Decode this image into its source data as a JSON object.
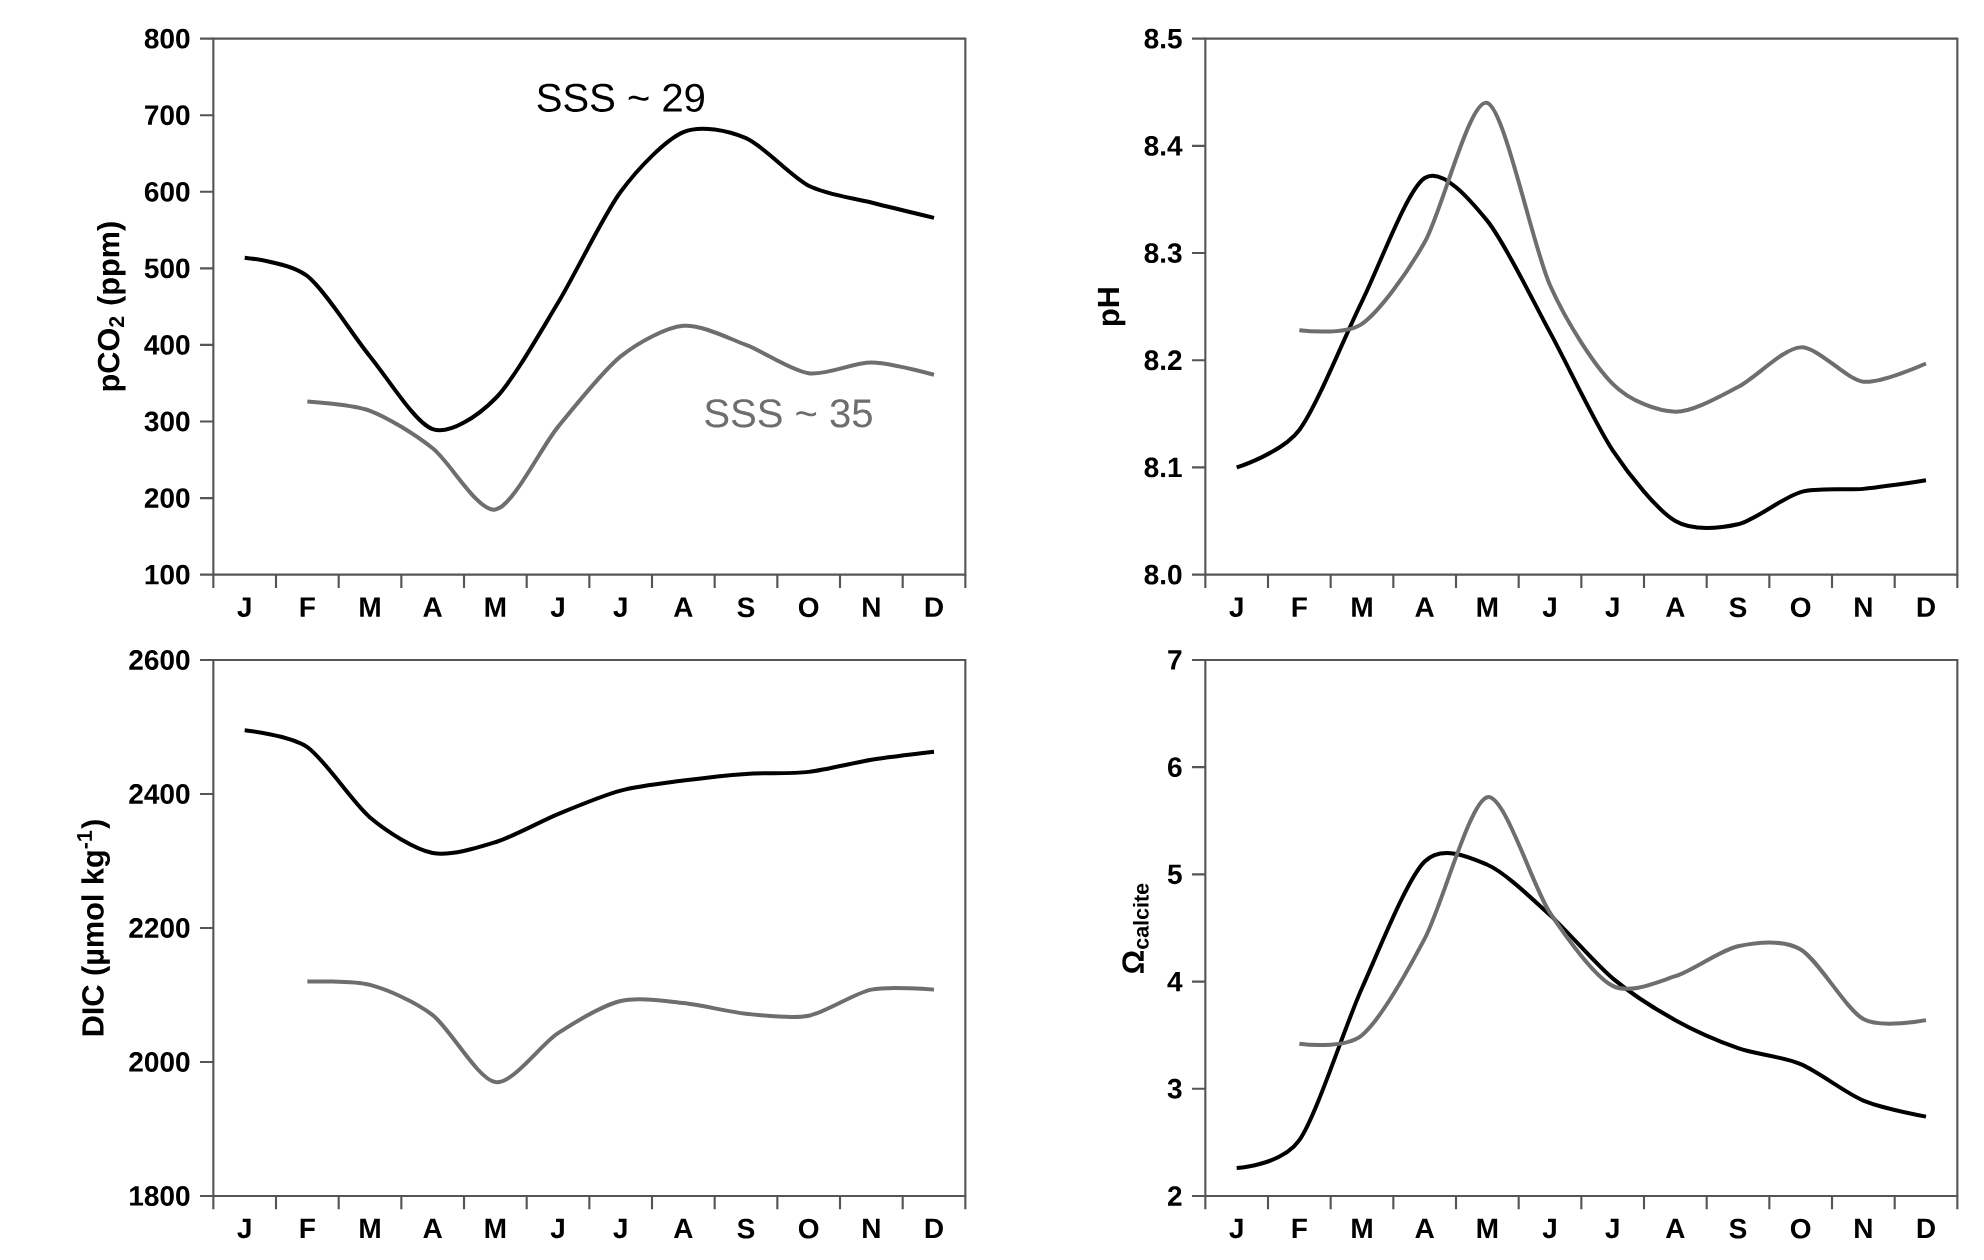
{
  "chart_data": [
    {
      "type": "line",
      "ylabel": "pCO$_{2}$ (ppm)",
      "categories": [
        "J",
        "F",
        "M",
        "A",
        "M",
        "J",
        "J",
        "A",
        "S",
        "O",
        "N",
        "D"
      ],
      "ylim": [
        100,
        800
      ],
      "yticks": [
        100,
        200,
        300,
        400,
        500,
        600,
        700,
        800
      ],
      "grid": false,
      "legend": false,
      "marker": "none",
      "line_style": "solid",
      "series": [
        {
          "name": "SSS ~ 29",
          "color": "#000000",
          "values": [
            514,
            490,
            385,
            290,
            330,
            455,
            600,
            678,
            670,
            608,
            586,
            566
          ]
        },
        {
          "name": "SSS ~ 35",
          "color": "#6e6e6e",
          "values": [
            null,
            326,
            314,
            265,
            185,
            293,
            385,
            425,
            400,
            363,
            377,
            361
          ]
        }
      ]
    },
    {
      "type": "line",
      "ylabel": "pH",
      "categories": [
        "J",
        "F",
        "M",
        "A",
        "M",
        "J",
        "J",
        "A",
        "S",
        "O",
        "N",
        "D"
      ],
      "ylim": [
        8.0,
        8.5
      ],
      "yticks": [
        {
          "value": 8.0,
          "label": "8.0"
        },
        8.1,
        8.2,
        8.3,
        8.4,
        8.5
      ],
      "grid": false,
      "legend": false,
      "marker": "none",
      "line_style": "solid",
      "series": [
        {
          "color": "#000000",
          "values": [
            8.1,
            8.135,
            8.255,
            8.37,
            8.33,
            8.226,
            8.116,
            8.05,
            8.047,
            8.077,
            8.08,
            8.088
          ]
        },
        {
          "color": "#6e6e6e",
          "values": [
            null,
            8.228,
            8.234,
            8.31,
            8.44,
            8.27,
            8.178,
            8.152,
            8.175,
            8.212,
            8.18,
            8.197
          ]
        }
      ]
    },
    {
      "type": "line",
      "ylabel": "DIC (µmol kg$^{-1}$)",
      "categories": [
        "J",
        "F",
        "M",
        "A",
        "M",
        "J",
        "J",
        "A",
        "S",
        "O",
        "N",
        "D"
      ],
      "ylim": [
        1800,
        2600
      ],
      "yticks": [
        1800,
        2000,
        2200,
        2400,
        2600
      ],
      "grid": false,
      "legend": false,
      "marker": "none",
      "line_style": "solid",
      "series": [
        {
          "color": "#000000",
          "values": [
            2495,
            2470,
            2365,
            2312,
            2328,
            2370,
            2405,
            2420,
            2430,
            2433,
            2451,
            2463
          ]
        },
        {
          "color": "#6e6e6e",
          "values": [
            null,
            2120,
            2115,
            2070,
            1970,
            2043,
            2091,
            2088,
            2072,
            2069,
            2108,
            2108
          ]
        }
      ]
    },
    {
      "type": "line",
      "ylabel": "Ω$_{calcite}$",
      "categories": [
        "J",
        "F",
        "M",
        "A",
        "M",
        "J",
        "J",
        "A",
        "S",
        "O",
        "N",
        "D"
      ],
      "ylim": [
        2,
        7
      ],
      "yticks": [
        2,
        3,
        4,
        5,
        6,
        7
      ],
      "grid": false,
      "legend": false,
      "marker": "none",
      "line_style": "solid",
      "series": [
        {
          "color": "#000000",
          "values": [
            2.26,
            2.52,
            3.94,
            5.12,
            5.09,
            4.62,
            4.03,
            3.64,
            3.38,
            3.23,
            2.89,
            2.74
          ]
        },
        {
          "color": "#6e6e6e",
          "values": [
            null,
            3.42,
            3.5,
            4.4,
            5.72,
            4.64,
            3.96,
            4.05,
            4.33,
            4.3,
            3.65,
            3.64
          ]
        }
      ]
    }
  ]
}
